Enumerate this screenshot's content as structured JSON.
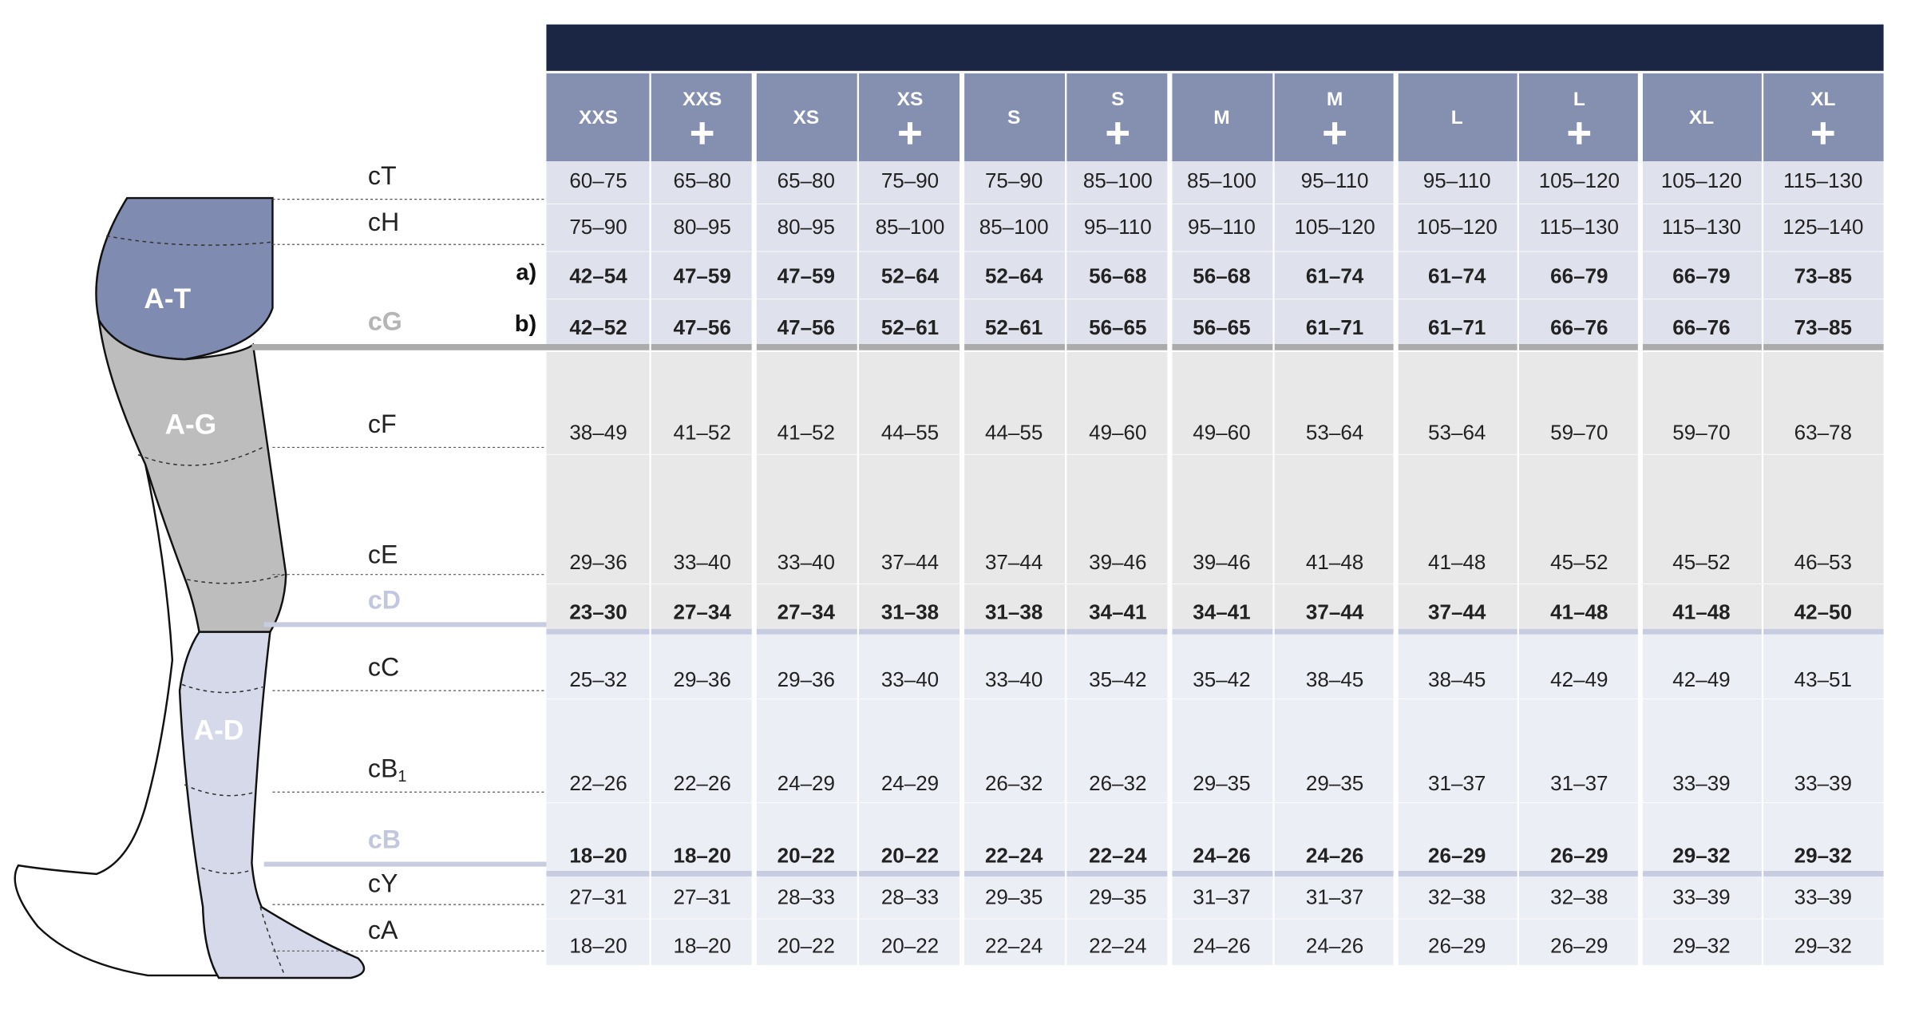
{
  "table": {
    "sizes": [
      {
        "label": "XXS",
        "plus": false
      },
      {
        "label": "XXS",
        "plus": true
      },
      {
        "label": "XS",
        "plus": false
      },
      {
        "label": "XS",
        "plus": true
      },
      {
        "label": "S",
        "plus": false
      },
      {
        "label": "S",
        "plus": true
      },
      {
        "label": "M",
        "plus": false
      },
      {
        "label": "M",
        "plus": true
      },
      {
        "label": "L",
        "plus": false
      },
      {
        "label": "L",
        "plus": true
      },
      {
        "label": "XL",
        "plus": false
      },
      {
        "label": "XL",
        "plus": true
      }
    ],
    "rows": [
      {
        "label": "cT",
        "bold": false,
        "values": [
          "60–75",
          "65–80",
          "65–80",
          "75–90",
          "75–90",
          "85–100",
          "85–100",
          "95–110",
          "95–110",
          "105–120",
          "105–120",
          "115–130"
        ]
      },
      {
        "label": "cH",
        "bold": false,
        "values": [
          "75–90",
          "80–95",
          "80–95",
          "85–100",
          "85–100",
          "95–110",
          "95–110",
          "105–120",
          "105–120",
          "115–130",
          "115–130",
          "125–140"
        ]
      },
      {
        "prefix": "a)",
        "bold": true,
        "values": [
          "42–54",
          "47–59",
          "47–59",
          "52–64",
          "52–64",
          "56–68",
          "56–68",
          "61–74",
          "61–74",
          "66–79",
          "66–79",
          "73–85"
        ]
      },
      {
        "prefix": "b)",
        "label": "cG",
        "label_color": "#b5b5b5",
        "bold": true,
        "values": [
          "42–52",
          "47–56",
          "47–56",
          "52–61",
          "52–61",
          "56–65",
          "56–65",
          "61–71",
          "61–71",
          "66–76",
          "66–76",
          "73–85"
        ]
      },
      {
        "label": "cF",
        "bold": false,
        "values": [
          "38–49",
          "41–52",
          "41–52",
          "44–55",
          "44–55",
          "49–60",
          "49–60",
          "53–64",
          "53–64",
          "59–70",
          "59–70",
          "63–78"
        ]
      },
      {
        "label": "cE",
        "bold": false,
        "values": [
          "29–36",
          "33–40",
          "33–40",
          "37–44",
          "37–44",
          "39–46",
          "39–46",
          "41–48",
          "41–48",
          "45–52",
          "45–52",
          "46–53"
        ]
      },
      {
        "label": "cD",
        "label_color": "#c3c7de",
        "bold": true,
        "values": [
          "23–30",
          "27–34",
          "27–34",
          "31–38",
          "31–38",
          "34–41",
          "34–41",
          "37–44",
          "37–44",
          "41–48",
          "41–48",
          "42–50"
        ]
      },
      {
        "label": "cC",
        "bold": false,
        "values": [
          "25–32",
          "29–36",
          "29–36",
          "33–40",
          "33–40",
          "35–42",
          "35–42",
          "38–45",
          "38–45",
          "42–49",
          "42–49",
          "43–51"
        ]
      },
      {
        "label": "cB",
        "sub": "1",
        "bold": false,
        "values": [
          "22–26",
          "22–26",
          "24–29",
          "24–29",
          "26–32",
          "26–32",
          "29–35",
          "29–35",
          "31–37",
          "31–37",
          "33–39",
          "33–39"
        ]
      },
      {
        "label": "cB",
        "label_color": "#c3c7de",
        "bold": true,
        "values": [
          "18–20",
          "18–20",
          "20–22",
          "20–22",
          "22–24",
          "22–24",
          "24–26",
          "24–26",
          "26–29",
          "26–29",
          "29–32",
          "29–32"
        ]
      },
      {
        "label": "cY",
        "bold": false,
        "values": [
          "27–31",
          "27–31",
          "28–33",
          "28–33",
          "29–35",
          "29–35",
          "31–37",
          "31–37",
          "32–38",
          "32–38",
          "33–39",
          "33–39"
        ]
      },
      {
        "label": "cA",
        "bold": false,
        "values": [
          "18–20",
          "18–20",
          "20–22",
          "20–22",
          "22–24",
          "22–24",
          "24–26",
          "24–26",
          "26–29",
          "26–29",
          "29–32",
          "29–32"
        ]
      }
    ]
  },
  "diagram": {
    "zones": [
      "A-T",
      "A-G",
      "A-D"
    ]
  }
}
